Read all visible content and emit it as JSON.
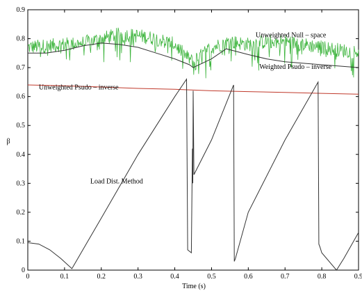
{
  "chart_data": {
    "type": "line",
    "title": "",
    "xlabel": "Time (s)",
    "ylabel": "β",
    "xlim": [
      0,
      0.9
    ],
    "ylim": [
      0,
      0.9
    ],
    "xticks": [
      "0",
      "0.1",
      "0.2",
      "0.3",
      "0.4",
      "0.5",
      "0.6",
      "0.7",
      "0.8",
      "0.9"
    ],
    "yticks": [
      "0",
      "0.1",
      "0.2",
      "0.3",
      "0.4",
      "0.5",
      "0.6",
      "0.7",
      "0.8",
      "0.9"
    ],
    "grid": false,
    "annotations": [
      {
        "text": "Unweighted Null – space",
        "x": 0.62,
        "y": 0.805
      },
      {
        "text": "Weighted Psudo – inverse",
        "x": 0.63,
        "y": 0.695
      },
      {
        "text": "Unweighted Psudo – inverse",
        "x": 0.03,
        "y": 0.625
      },
      {
        "text": "Load Dist. Method",
        "x": 0.17,
        "y": 0.3
      }
    ],
    "series": [
      {
        "name": "Unweighted Null – space",
        "color": "#3cb43c",
        "style": "noisy",
        "noise_amp": 0.05,
        "x": [
          0,
          0.05,
          0.1,
          0.15,
          0.2,
          0.25,
          0.3,
          0.35,
          0.4,
          0.43,
          0.45,
          0.48,
          0.5,
          0.55,
          0.6,
          0.65,
          0.7,
          0.75,
          0.8,
          0.85,
          0.9
        ],
        "y": [
          0.77,
          0.775,
          0.78,
          0.785,
          0.8,
          0.815,
          0.81,
          0.8,
          0.78,
          0.74,
          0.72,
          0.75,
          0.77,
          0.79,
          0.78,
          0.79,
          0.79,
          0.78,
          0.77,
          0.76,
          0.755
        ]
      },
      {
        "name": "Weighted Psudo – inverse",
        "color": "#333333",
        "style": "line",
        "x": [
          0,
          0.05,
          0.1,
          0.15,
          0.2,
          0.25,
          0.3,
          0.35,
          0.4,
          0.44,
          0.45,
          0.5,
          0.54,
          0.6,
          0.65,
          0.7,
          0.75,
          0.8,
          0.85,
          0.9
        ],
        "y": [
          0.75,
          0.75,
          0.76,
          0.775,
          0.785,
          0.78,
          0.77,
          0.75,
          0.73,
          0.71,
          0.7,
          0.73,
          0.765,
          0.745,
          0.73,
          0.72,
          0.715,
          0.71,
          0.705,
          0.7
        ]
      },
      {
        "name": "Unweighted Psudo – inverse",
        "color": "#c0392b",
        "style": "line",
        "x": [
          0,
          0.1,
          0.2,
          0.3,
          0.4,
          0.5,
          0.6,
          0.7,
          0.8,
          0.9
        ],
        "y": [
          0.64,
          0.637,
          0.633,
          0.628,
          0.625,
          0.62,
          0.617,
          0.614,
          0.611,
          0.608
        ]
      },
      {
        "name": "Load Dist. Method",
        "color": "#333333",
        "style": "line",
        "x": [
          0,
          0.03,
          0.06,
          0.09,
          0.12,
          0.2,
          0.3,
          0.4,
          0.432,
          0.435,
          0.445,
          0.447,
          0.448,
          0.449,
          0.45,
          0.452,
          0.5,
          0.56,
          0.562,
          0.565,
          0.6,
          0.7,
          0.79,
          0.792,
          0.795,
          0.8,
          0.84,
          0.86,
          0.9
        ],
        "y": [
          0.095,
          0.09,
          0.07,
          0.04,
          0.005,
          0.18,
          0.4,
          0.6,
          0.66,
          0.07,
          0.06,
          0.3,
          0.42,
          0.3,
          0.62,
          0.33,
          0.45,
          0.64,
          0.03,
          0.04,
          0.2,
          0.45,
          0.65,
          0.09,
          0.08,
          0.06,
          0.0,
          0.04,
          0.13
        ]
      }
    ]
  }
}
